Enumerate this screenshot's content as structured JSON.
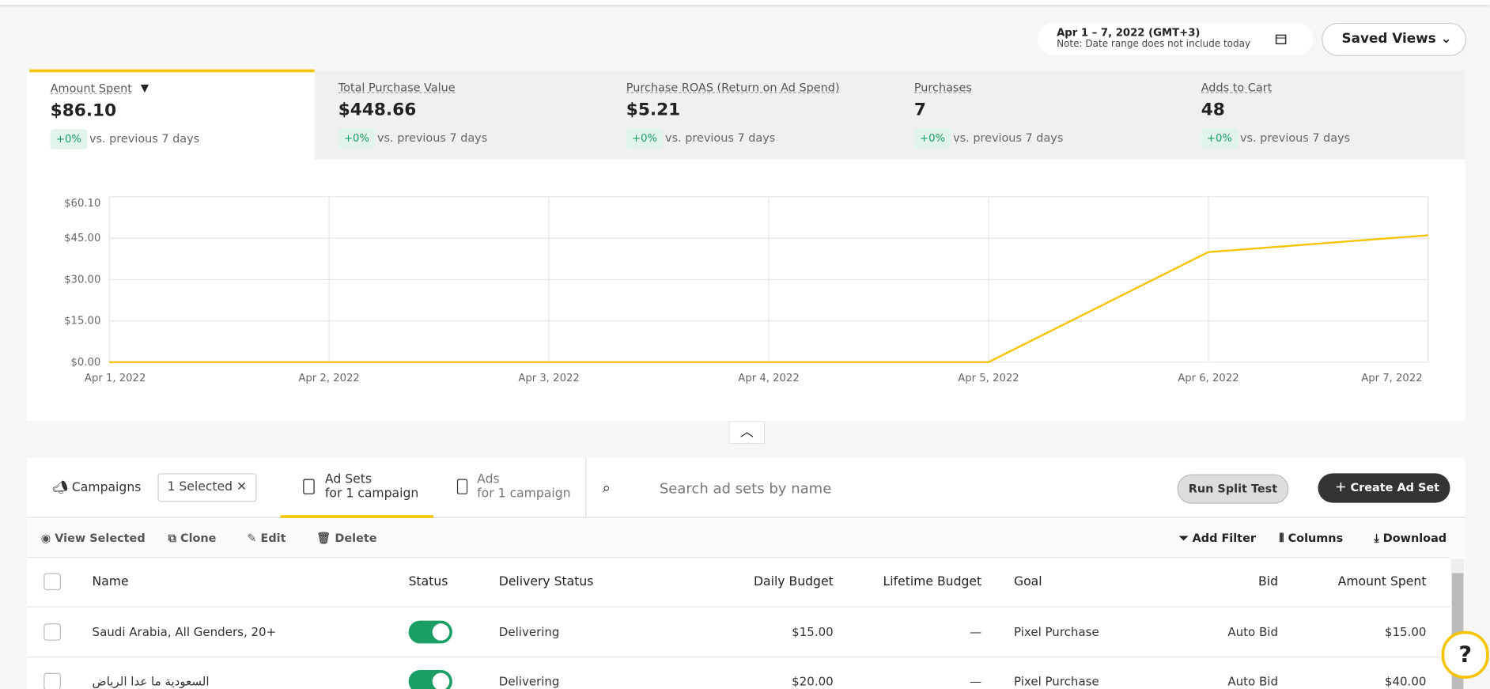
{
  "header": {
    "date_range": "Apr 1 – 7, 2022 (GMT+3)",
    "date_note": "Note: Date range does not include today",
    "saved_views": "Saved Views"
  },
  "metrics": [
    {
      "label": "Amount Spent",
      "value": "$86.10",
      "change": "+0%",
      "comparison": "vs. previous 7 days"
    },
    {
      "label": "Total Purchase Value",
      "value": "$448.66",
      "change": "+0%",
      "comparison": "vs. previous 7 days"
    },
    {
      "label": "Purchase ROAS (Return on Ad Spend)",
      "value": "$5.21",
      "change": "+0%",
      "comparison": "vs. previous 7 days"
    },
    {
      "label": "Purchases",
      "value": "7",
      "change": "+0%",
      "comparison": "vs. previous 7 days"
    },
    {
      "label": "Adds to Cart",
      "value": "48",
      "change": "+0%",
      "comparison": "vs. previous 7 days"
    }
  ],
  "chart_data": {
    "type": "line",
    "categories": [
      "Apr 1, 2022",
      "Apr 2, 2022",
      "Apr 3, 2022",
      "Apr 4, 2022",
      "Apr 5, 2022",
      "Apr 6, 2022",
      "Apr 7, 2022"
    ],
    "values": [
      0,
      0,
      0,
      0,
      0,
      40,
      46.1
    ],
    "color": "#f5c400",
    "ylim": [
      0,
      60.1
    ],
    "yticks": [
      {
        "value": 0,
        "label": "$0.00"
      },
      {
        "value": 15,
        "label": "$15.00"
      },
      {
        "value": 30,
        "label": "$30.00"
      },
      {
        "value": 45,
        "label": "$45.00"
      },
      {
        "value": 60.1,
        "label": "$60.10"
      }
    ],
    "grid": true
  },
  "tabs": {
    "campaigns": "Campaigns",
    "selected": "1 Selected",
    "ad_sets": "Ad Sets",
    "ad_sets_sub": "for 1 campaign",
    "ads": "Ads",
    "ads_sub": "for 1 campaign",
    "search_placeholder": "Search ad sets by name",
    "split_test": "Run Split Test",
    "create": "Create Ad Set"
  },
  "toolbar": {
    "actions": [
      "View Selected",
      "Clone",
      "Edit",
      "Delete"
    ],
    "tools": [
      "Add Filter",
      "Columns",
      "Download"
    ]
  },
  "table": {
    "columns": [
      "Name",
      "Status",
      "Delivery Status",
      "Daily Budget",
      "Lifetime Budget",
      "Goal",
      "Bid",
      "Amount Spent"
    ],
    "rows": [
      {
        "name": "Saudi Arabia, All Genders, 20+",
        "delivery": "Delivering",
        "daily_budget": "$15.00",
        "lifetime_budget": "—",
        "goal": "Pixel Purchase",
        "bid": "Auto Bid",
        "amount_spent": "$15.00"
      },
      {
        "name": "السعودية ما عدا الرياض",
        "delivery": "Delivering",
        "daily_budget": "$20.00",
        "lifetime_budget": "—",
        "goal": "Pixel Purchase",
        "bid": "Auto Bid",
        "amount_spent": "$40.00"
      }
    ]
  }
}
